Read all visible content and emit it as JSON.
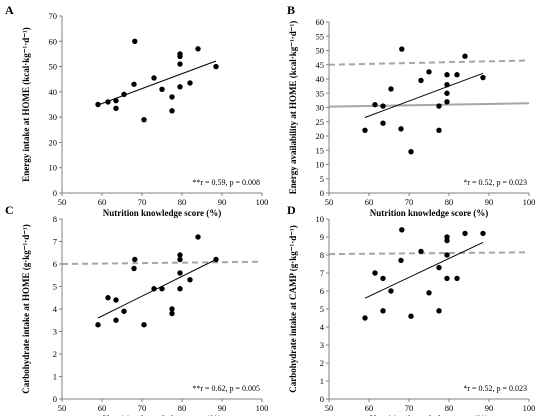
{
  "chart_data": [
    {
      "type": "scatter",
      "panel": "A",
      "xlabel": "Nutrition knowledge score (%)",
      "ylabel": "Energy intake at HOME (kcal·kg⁻¹·d⁻¹)",
      "xlim": [
        50,
        100
      ],
      "ylim": [
        0,
        70
      ],
      "xticks": [
        50,
        60,
        70,
        80,
        90,
        100
      ],
      "yticks": [
        0,
        10,
        20,
        30,
        40,
        50,
        60,
        70
      ],
      "annotation": "**r = 0.59, p = 0.008",
      "points": [
        [
          59,
          35
        ],
        [
          61.5,
          36
        ],
        [
          63.5,
          33.5
        ],
        [
          63.5,
          36.5
        ],
        [
          65.5,
          39
        ],
        [
          68,
          43
        ],
        [
          68.2,
          60
        ],
        [
          70.5,
          29
        ],
        [
          73,
          45.5
        ],
        [
          75,
          41
        ],
        [
          77.5,
          32.5
        ],
        [
          77.5,
          38
        ],
        [
          79.5,
          42
        ],
        [
          79.5,
          51
        ],
        [
          79.5,
          54
        ],
        [
          79.5,
          55
        ],
        [
          82,
          43.5
        ],
        [
          84,
          57
        ],
        [
          88.5,
          50
        ]
      ],
      "trendline": [
        [
          59,
          34.8
        ],
        [
          88.5,
          52.2
        ]
      ]
    },
    {
      "type": "scatter",
      "panel": "B",
      "xlabel": "Nutrition knowledge score (%)",
      "ylabel": "Energy availability at HOME (kcal·kg⁻¹·d⁻¹)",
      "xlim": [
        50,
        100
      ],
      "ylim": [
        0,
        60
      ],
      "xticks": [
        50,
        60,
        70,
        80,
        90,
        100
      ],
      "yticks": [
        0,
        5,
        10,
        15,
        20,
        25,
        30,
        35,
        40,
        45,
        50,
        55,
        60
      ],
      "annotation": "*r = 0.52, p = 0.023",
      "points": [
        [
          59,
          22
        ],
        [
          61.5,
          31
        ],
        [
          63.5,
          24.5
        ],
        [
          63.5,
          30.5
        ],
        [
          65.5,
          36.5
        ],
        [
          68,
          22.5
        ],
        [
          68.2,
          50.5
        ],
        [
          70.5,
          14.5
        ],
        [
          73,
          39.5
        ],
        [
          75,
          42.5
        ],
        [
          77.5,
          22
        ],
        [
          77.5,
          30.5
        ],
        [
          79.5,
          32
        ],
        [
          79.5,
          35
        ],
        [
          79.5,
          38
        ],
        [
          79.5,
          41.5
        ],
        [
          82,
          41.5
        ],
        [
          84,
          48
        ],
        [
          88.5,
          40.5
        ]
      ],
      "trendline": [
        [
          59,
          26.5
        ],
        [
          88.5,
          42
        ]
      ],
      "reference_lines": [
        {
          "style": "dashed",
          "y": [
            45,
            46.5
          ]
        },
        {
          "style": "solid",
          "y": [
            30.3,
            31.5
          ]
        }
      ]
    },
    {
      "type": "scatter",
      "panel": "C",
      "xlabel": "Nutrition knowledge score (%)",
      "ylabel": "Carbohydrate intake at HOME (g·kg⁻¹·d⁻¹)",
      "xlim": [
        50,
        100
      ],
      "ylim": [
        0,
        8
      ],
      "xticks": [
        50,
        60,
        70,
        80,
        90,
        100
      ],
      "yticks": [
        0,
        1,
        2,
        3,
        4,
        5,
        6,
        7,
        8
      ],
      "annotation": "**r = 0.62, p = 0.005",
      "points": [
        [
          59,
          3.3
        ],
        [
          61.5,
          4.5
        ],
        [
          63.5,
          3.5
        ],
        [
          63.5,
          4.4
        ],
        [
          65.5,
          3.9
        ],
        [
          68,
          5.8
        ],
        [
          68.2,
          6.2
        ],
        [
          70.5,
          3.3
        ],
        [
          73,
          4.9
        ],
        [
          75,
          4.9
        ],
        [
          77.5,
          3.8
        ],
        [
          77.5,
          4.0
        ],
        [
          79.5,
          4.9
        ],
        [
          79.5,
          5.6
        ],
        [
          79.5,
          6.2
        ],
        [
          79.5,
          6.4
        ],
        [
          82,
          5.3
        ],
        [
          84,
          7.2
        ],
        [
          88.5,
          6.2
        ]
      ],
      "trendline": [
        [
          59,
          3.6
        ],
        [
          88.5,
          6.2
        ]
      ],
      "reference_lines": [
        {
          "style": "dashed",
          "y": [
            6.0,
            6.1
          ]
        }
      ]
    },
    {
      "type": "scatter",
      "panel": "D",
      "xlabel": "Nutrition knowledge score (%)",
      "ylabel": "Carbohydrate intake at CAMP (g·kg⁻¹·d⁻¹)",
      "xlim": [
        50,
        100
      ],
      "ylim": [
        0,
        10
      ],
      "xticks": [
        50,
        60,
        70,
        80,
        90,
        100
      ],
      "yticks": [
        0,
        1,
        2,
        3,
        4,
        5,
        6,
        7,
        8,
        9,
        10
      ],
      "annotation": "*r = 0.52, p = 0.023",
      "points": [
        [
          59,
          4.5
        ],
        [
          61.5,
          7.0
        ],
        [
          63.5,
          4.9
        ],
        [
          63.5,
          6.7
        ],
        [
          65.5,
          6.0
        ],
        [
          68,
          7.7
        ],
        [
          68.2,
          9.4
        ],
        [
          70.5,
          4.6
        ],
        [
          73,
          8.2
        ],
        [
          75,
          5.9
        ],
        [
          77.5,
          4.9
        ],
        [
          77.5,
          7.3
        ],
        [
          79.5,
          6.7
        ],
        [
          79.5,
          8.0
        ],
        [
          79.5,
          8.8
        ],
        [
          79.5,
          9.0
        ],
        [
          82,
          6.7
        ],
        [
          84,
          9.2
        ],
        [
          88.5,
          9.2
        ]
      ],
      "trendline": [
        [
          59,
          5.6
        ],
        [
          88.5,
          8.7
        ]
      ],
      "reference_lines": [
        {
          "style": "dashed",
          "y": [
            8.05,
            8.15
          ]
        }
      ]
    }
  ]
}
